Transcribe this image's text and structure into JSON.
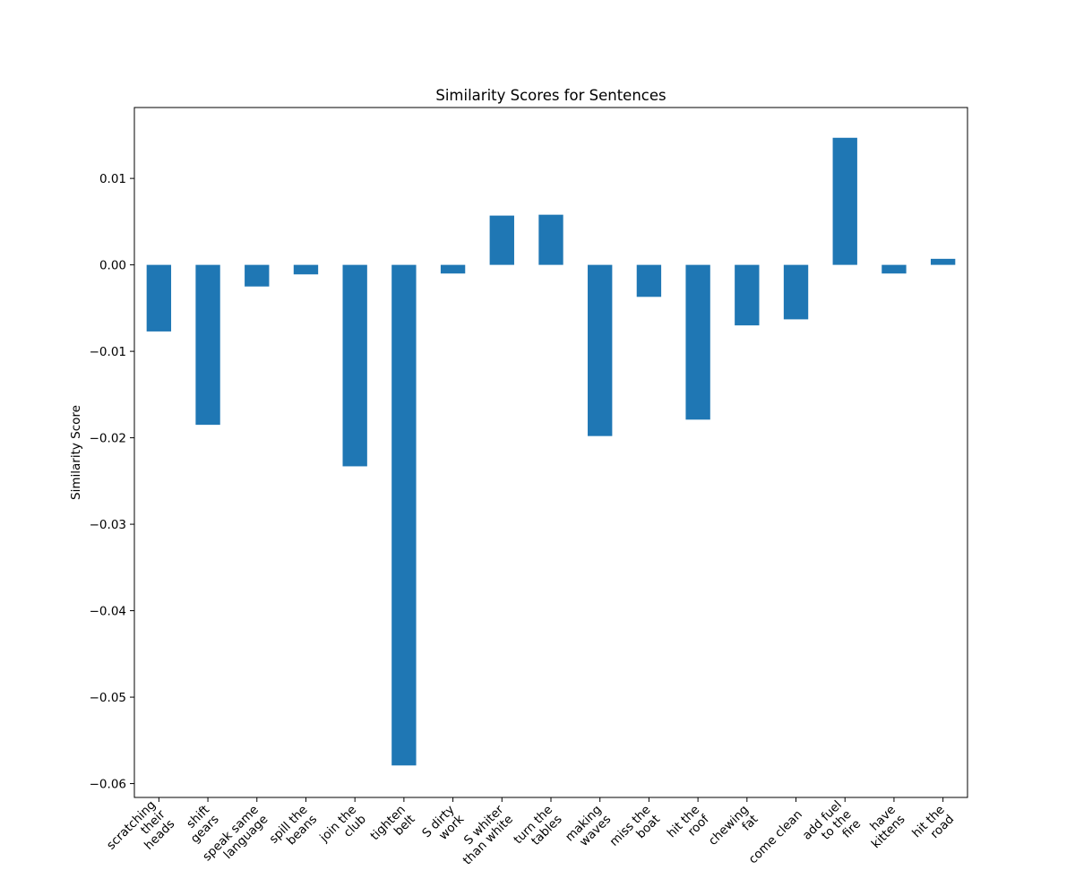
{
  "chart_data": {
    "type": "bar",
    "title": "Similarity Scores for Sentences",
    "xlabel": "",
    "ylabel": "Similarity Score",
    "ylim": [
      -0.0616,
      0.0182
    ],
    "yticks": [
      0.01,
      0.0,
      -0.01,
      -0.02,
      -0.03,
      -0.04,
      -0.05,
      -0.06
    ],
    "ytick_labels": [
      "0.01",
      "0.00",
      "−0.01",
      "−0.02",
      "−0.03",
      "−0.04",
      "−0.05",
      "−0.06"
    ],
    "grid": false,
    "bar_color": "#1f77b4",
    "categories": [
      "scratching their heads",
      "shift gears",
      "speak same language",
      "spill the beans",
      "join the club",
      "tighten belt",
      "S dirty work",
      "S whiter than white",
      "turn the tables",
      "making waves",
      "miss the boat",
      "hit the roof",
      "chewing fat",
      "come clean",
      "add fuel to the fire",
      "have kittens",
      "hit the road"
    ],
    "category_lines": [
      [
        "scratching",
        "their",
        "heads"
      ],
      [
        "shift",
        "gears"
      ],
      [
        "speak same",
        "language"
      ],
      [
        "spill the",
        "beans"
      ],
      [
        "join the",
        "club"
      ],
      [
        "tighten",
        "belt"
      ],
      [
        "S dirty",
        "work"
      ],
      [
        "S whiter",
        "than white"
      ],
      [
        "turn the",
        "tables"
      ],
      [
        "making",
        "waves"
      ],
      [
        "miss the",
        "boat"
      ],
      [
        "hit the",
        "roof"
      ],
      [
        "chewing",
        "fat"
      ],
      [
        "come clean"
      ],
      [
        "add fuel",
        "to the",
        "fire"
      ],
      [
        "have",
        "kittens"
      ],
      [
        "hit the",
        "road"
      ]
    ],
    "values": [
      -0.0077,
      -0.0185,
      -0.0025,
      -0.0011,
      -0.0233,
      -0.0579,
      -0.001,
      0.0057,
      0.0058,
      -0.0198,
      -0.0037,
      -0.0179,
      -0.007,
      -0.0063,
      0.0147,
      -0.001,
      0.0007
    ]
  }
}
